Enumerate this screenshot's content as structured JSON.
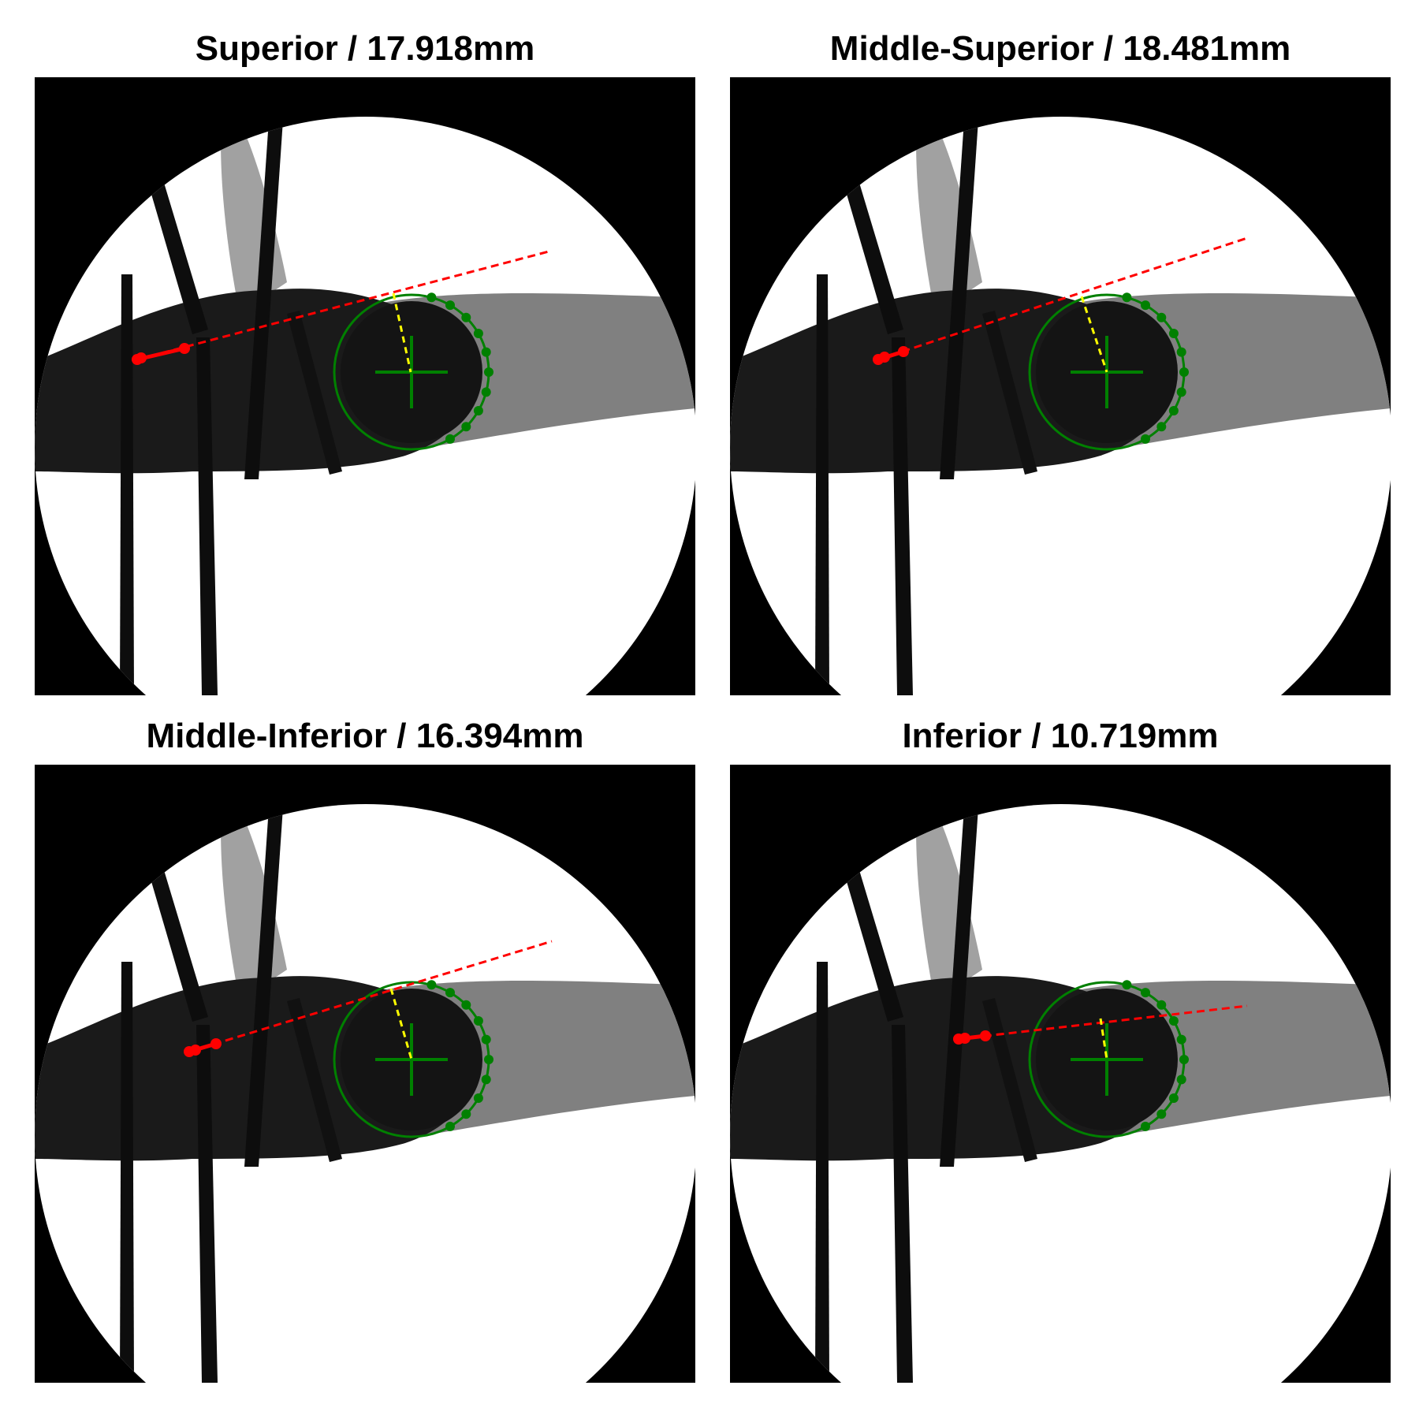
{
  "panels": [
    {
      "title": "Superior / 17.918mm",
      "variant": 0
    },
    {
      "title": "Middle-Superior / 18.481mm",
      "variant": 1
    },
    {
      "title": "Middle-Inferior / 16.394mm",
      "variant": 2
    },
    {
      "title": "Inferior / 10.719mm",
      "variant": 3
    }
  ],
  "colors": {
    "background": "#000000",
    "field": "#ffffff",
    "bone": "#1a1a1a",
    "fit_circle": "#008000",
    "axis_line": "#ff0000",
    "distance_line": "#ffff00"
  }
}
